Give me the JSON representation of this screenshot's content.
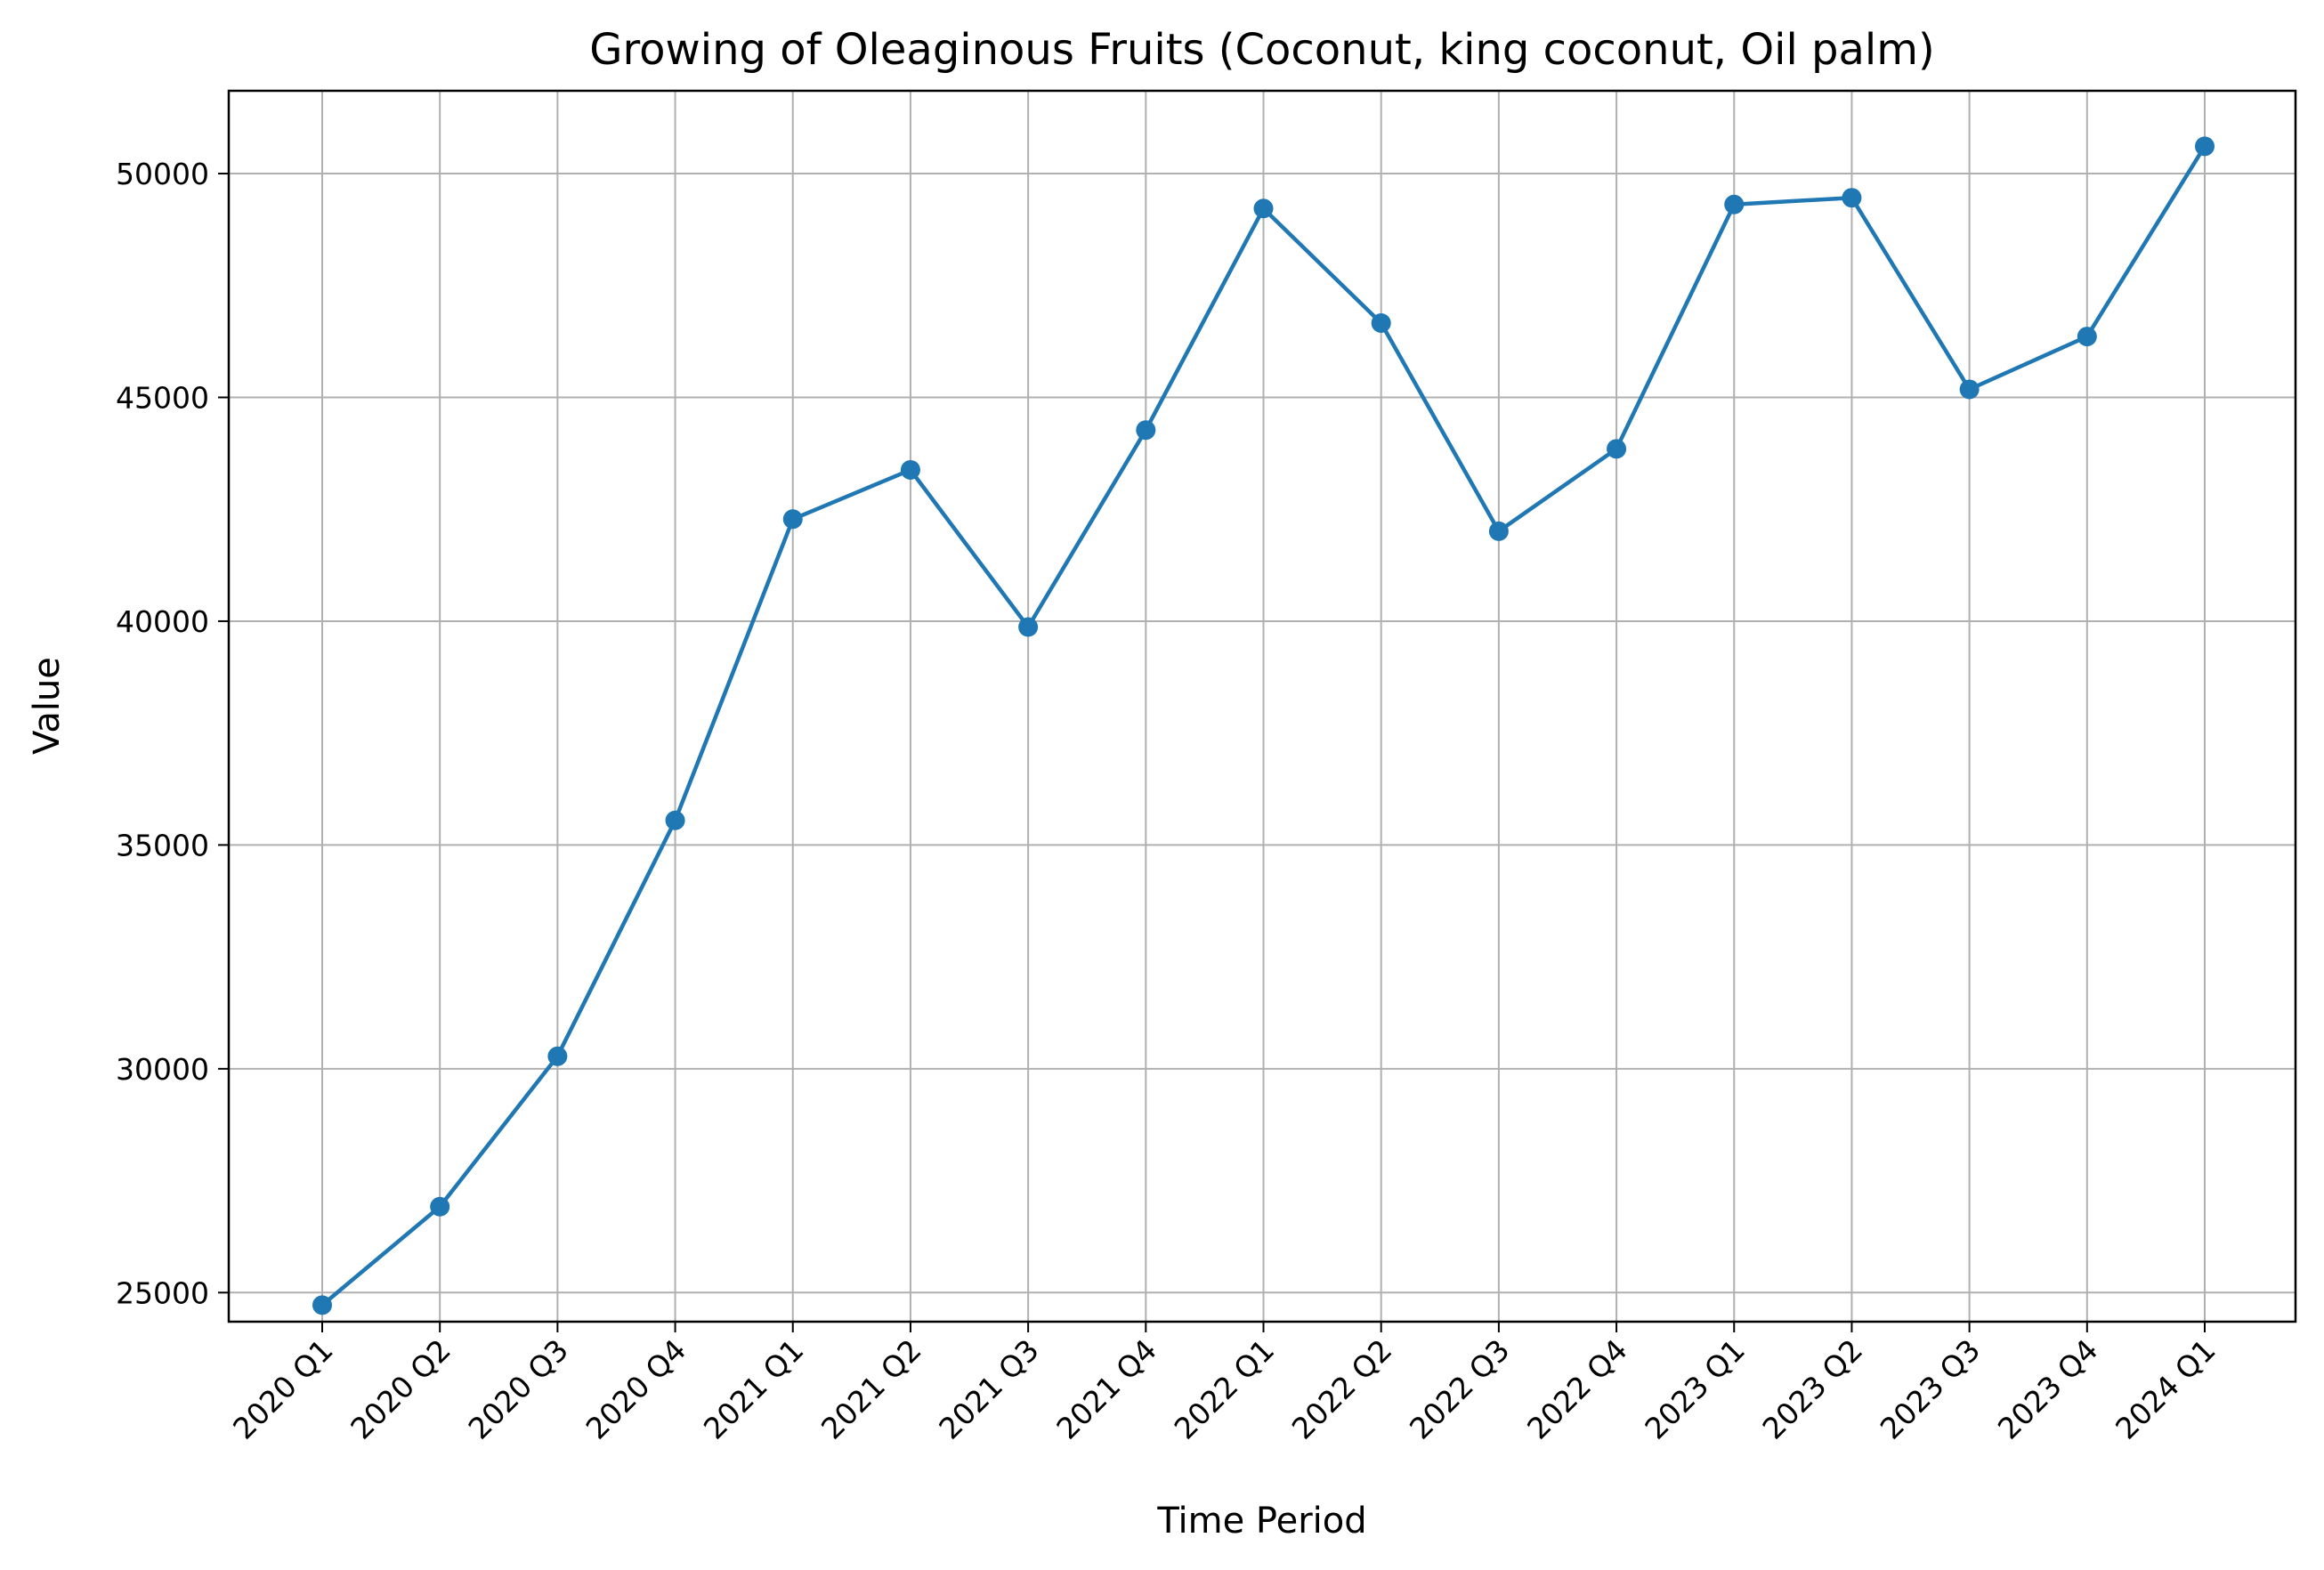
{
  "chart_data": {
    "type": "line",
    "title": "Growing of Oleaginous Fruits (Coconut, king coconut, Oil palm)",
    "xlabel": "Time Period",
    "ylabel": "Value",
    "categories": [
      "2020 Q1",
      "2020 Q2",
      "2020 Q3",
      "2020 Q4",
      "2021 Q1",
      "2021 Q2",
      "2021 Q3",
      "2021 Q4",
      "2022 Q1",
      "2022 Q2",
      "2022 Q3",
      "2022 Q4",
      "2023 Q1",
      "2023 Q2",
      "2023 Q3",
      "2023 Q4",
      "2024 Q1"
    ],
    "series": [
      {
        "values": [
          24720,
          26920,
          30280,
          35550,
          42280,
          43380,
          39870,
          44270,
          49220,
          46660,
          42010,
          43850,
          49310,
          49460,
          45180,
          46360,
          50610
        ]
      }
    ],
    "ylim": [
      24350,
      51850
    ],
    "yticks": [
      25000,
      30000,
      35000,
      40000,
      45000,
      50000
    ],
    "grid": true,
    "line_color": "#1f77b4",
    "grid_color": "#b0b0b0"
  }
}
